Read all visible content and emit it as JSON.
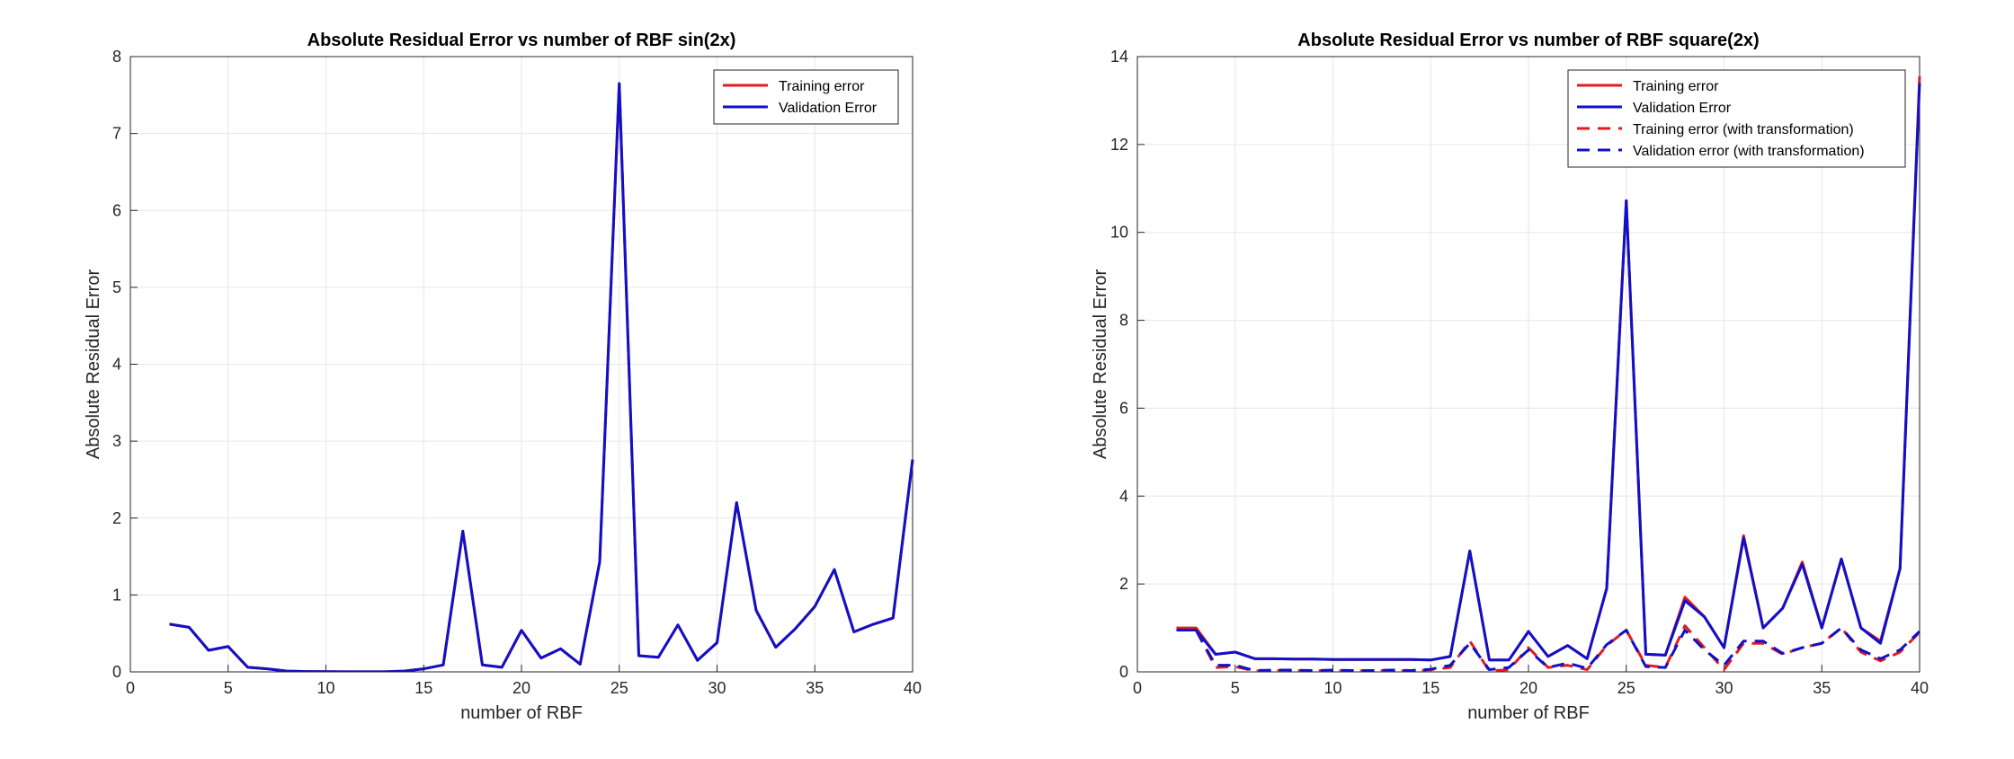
{
  "chart_data": [
    {
      "type": "line",
      "title": "Absolute Residual Error vs number of RBF sin(2x)",
      "xlabel": "number of RBF",
      "ylabel": "Absolute Residual Error",
      "xlim": [
        0,
        40
      ],
      "ylim": [
        0,
        8
      ],
      "xticks": [
        0,
        5,
        10,
        15,
        20,
        25,
        30,
        35,
        40
      ],
      "yticks": [
        0,
        1,
        2,
        3,
        4,
        5,
        6,
        7,
        8
      ],
      "grid": true,
      "legend_location": "top-right",
      "x": [
        2,
        3,
        4,
        5,
        6,
        7,
        8,
        9,
        10,
        11,
        12,
        13,
        14,
        15,
        16,
        17,
        18,
        19,
        20,
        21,
        22,
        23,
        24,
        25,
        26,
        27,
        28,
        29,
        30,
        31,
        32,
        33,
        34,
        35,
        36,
        37,
        38,
        39,
        40
      ],
      "series": [
        {
          "name": "Training error",
          "color": "#e41a1c",
          "dash": "solid",
          "values": [
            0.62,
            0.58,
            0.28,
            0.33,
            0.06,
            0.04,
            0.01,
            0.005,
            0.003,
            0.002,
            0.002,
            0.002,
            0.01,
            0.04,
            0.09,
            1.83,
            0.09,
            0.06,
            0.54,
            0.18,
            0.3,
            0.1,
            1.43,
            7.65,
            0.21,
            0.19,
            0.61,
            0.15,
            0.38,
            2.2,
            0.8,
            0.32,
            0.56,
            0.85,
            1.33,
            0.52,
            0.62,
            0.7,
            2.76
          ]
        },
        {
          "name": "Validation Error",
          "color": "#1010c8",
          "dash": "solid",
          "values": [
            0.62,
            0.58,
            0.28,
            0.33,
            0.06,
            0.04,
            0.01,
            0.005,
            0.003,
            0.002,
            0.002,
            0.002,
            0.01,
            0.04,
            0.09,
            1.83,
            0.09,
            0.06,
            0.54,
            0.18,
            0.3,
            0.1,
            1.43,
            7.65,
            0.21,
            0.19,
            0.61,
            0.15,
            0.38,
            2.2,
            0.8,
            0.32,
            0.56,
            0.85,
            1.33,
            0.52,
            0.62,
            0.7,
            2.76
          ]
        }
      ]
    },
    {
      "type": "line",
      "title": "Absolute Residual Error vs number of RBF square(2x)",
      "xlabel": "number of RBF",
      "ylabel": "Absolute Residual Error",
      "xlim": [
        0,
        40
      ],
      "ylim": [
        0,
        14
      ],
      "xticks": [
        0,
        5,
        10,
        15,
        20,
        25,
        30,
        35,
        40
      ],
      "yticks": [
        0,
        2,
        4,
        6,
        8,
        10,
        12,
        14
      ],
      "grid": true,
      "legend_location": "top-right",
      "x": [
        2,
        3,
        4,
        5,
        6,
        7,
        8,
        9,
        10,
        11,
        12,
        13,
        14,
        15,
        16,
        17,
        18,
        19,
        20,
        21,
        22,
        23,
        24,
        25,
        26,
        27,
        28,
        29,
        30,
        31,
        32,
        33,
        34,
        35,
        36,
        37,
        38,
        39,
        40
      ],
      "series": [
        {
          "name": "Training error",
          "color": "#e41a1c",
          "dash": "solid",
          "values": [
            1.0,
            1.0,
            0.4,
            0.45,
            0.3,
            0.3,
            0.29,
            0.29,
            0.28,
            0.28,
            0.28,
            0.28,
            0.28,
            0.27,
            0.35,
            2.75,
            0.27,
            0.27,
            0.92,
            0.35,
            0.6,
            0.3,
            1.9,
            10.72,
            0.4,
            0.38,
            1.7,
            1.25,
            0.55,
            3.1,
            1.0,
            1.45,
            2.5,
            1.0,
            2.57,
            1.0,
            0.7,
            2.35,
            13.55
          ]
        },
        {
          "name": "Validation Error",
          "color": "#1010c8",
          "dash": "solid",
          "values": [
            0.95,
            0.95,
            0.4,
            0.45,
            0.3,
            0.3,
            0.29,
            0.29,
            0.28,
            0.28,
            0.28,
            0.28,
            0.28,
            0.27,
            0.35,
            2.75,
            0.27,
            0.27,
            0.92,
            0.35,
            0.6,
            0.3,
            1.9,
            10.72,
            0.4,
            0.38,
            1.62,
            1.25,
            0.55,
            3.05,
            1.0,
            1.45,
            2.45,
            1.0,
            2.57,
            1.0,
            0.65,
            2.35,
            13.4
          ]
        },
        {
          "name": "Training error (with transformation)",
          "color": "#e41a1c",
          "dash": "dashed",
          "values": [
            1.0,
            0.95,
            0.1,
            0.12,
            0.02,
            0.03,
            0.03,
            0.02,
            0.03,
            0.02,
            0.02,
            0.03,
            0.02,
            0.05,
            0.1,
            0.7,
            0.02,
            0.05,
            0.55,
            0.1,
            0.15,
            0.05,
            0.6,
            0.95,
            0.15,
            0.1,
            1.05,
            0.55,
            0.05,
            0.65,
            0.65,
            0.4,
            0.55,
            0.65,
            1.0,
            0.45,
            0.25,
            0.45,
            0.9
          ]
        },
        {
          "name": "Validation error (with transformation)",
          "color": "#1010c8",
          "dash": "dashed",
          "values": [
            0.95,
            0.95,
            0.15,
            0.15,
            0.03,
            0.04,
            0.04,
            0.03,
            0.04,
            0.03,
            0.03,
            0.04,
            0.03,
            0.06,
            0.15,
            0.65,
            0.05,
            0.1,
            0.5,
            0.1,
            0.2,
            0.08,
            0.62,
            0.95,
            0.12,
            0.1,
            0.95,
            0.5,
            0.15,
            0.7,
            0.7,
            0.42,
            0.55,
            0.65,
            1.0,
            0.5,
            0.3,
            0.5,
            0.92
          ]
        }
      ]
    }
  ]
}
